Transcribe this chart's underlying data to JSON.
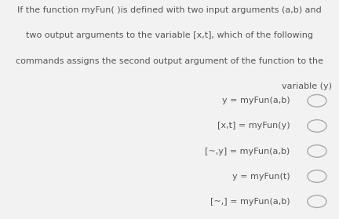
{
  "bg_color": "#f2f2f2",
  "question_lines": [
    "If the function myFun( )is defined with two input arguments (a,b) and",
    "two output arguments to the variable [x,t], which of the following",
    "commands assigns the second output argument of the function to the",
    "variable (y)"
  ],
  "question_align": [
    "center",
    "center",
    "center",
    "right"
  ],
  "options": [
    "y = myFun(a,b)",
    "[x,t] = myFun(y)",
    "[~,y] = myFun(a,b)",
    "y = myFun(t)",
    "[~,] = myFun(a,b)"
  ],
  "text_color": "#555555",
  "circle_color": "#aaaaaa",
  "question_fontsize": 8.0,
  "option_fontsize": 8.0,
  "fig_width": 4.32,
  "fig_height": 2.79,
  "dpi": 100
}
